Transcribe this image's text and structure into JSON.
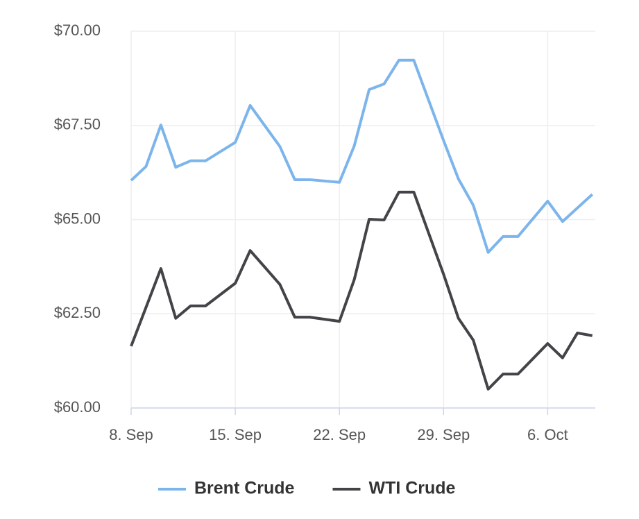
{
  "chart_data": {
    "type": "line",
    "x": [
      0,
      1,
      2,
      3,
      4,
      5,
      7,
      8,
      10,
      11,
      12,
      14,
      15,
      16,
      17,
      18,
      19,
      21,
      22,
      23,
      24,
      25,
      26,
      28,
      29,
      30,
      31
    ],
    "series": [
      {
        "name": "Brent Crude",
        "color": "#7cb5ec",
        "values": [
          66.04,
          66.41,
          67.51,
          66.39,
          66.56,
          66.56,
          67.05,
          68.03,
          66.94,
          66.06,
          66.06,
          65.99,
          66.96,
          68.45,
          68.6,
          69.23,
          69.23,
          67.1,
          66.08,
          65.38,
          64.13,
          64.55,
          64.55,
          65.49,
          64.95,
          65.31,
          65.67
        ]
      },
      {
        "name": "WTI Crude",
        "color": "#434348",
        "values": [
          61.64,
          62.67,
          63.7,
          62.38,
          62.71,
          62.71,
          63.31,
          64.18,
          63.28,
          62.41,
          62.41,
          62.3,
          63.41,
          65.01,
          64.99,
          65.73,
          65.73,
          63.55,
          62.38,
          61.8,
          60.5,
          60.9,
          60.9,
          61.71,
          61.33,
          61.99,
          61.92
        ]
      }
    ],
    "xlim": [
      0,
      31.2
    ],
    "xticks": [
      {
        "value": 0,
        "label": "8. Sep"
      },
      {
        "value": 7,
        "label": "15. Sep"
      },
      {
        "value": 14,
        "label": "22. Sep"
      },
      {
        "value": 21,
        "label": "29. Sep"
      },
      {
        "value": 28,
        "label": "6. Oct"
      }
    ],
    "ylim": [
      60,
      70
    ],
    "yticks": [
      {
        "value": 60,
        "label": "$60.00"
      },
      {
        "value": 62.5,
        "label": "$62.50"
      },
      {
        "value": 65,
        "label": "$65.00"
      },
      {
        "value": 67.5,
        "label": "$67.50"
      },
      {
        "value": 70,
        "label": "$70.00"
      }
    ],
    "grid": true,
    "legend": "bottom"
  }
}
